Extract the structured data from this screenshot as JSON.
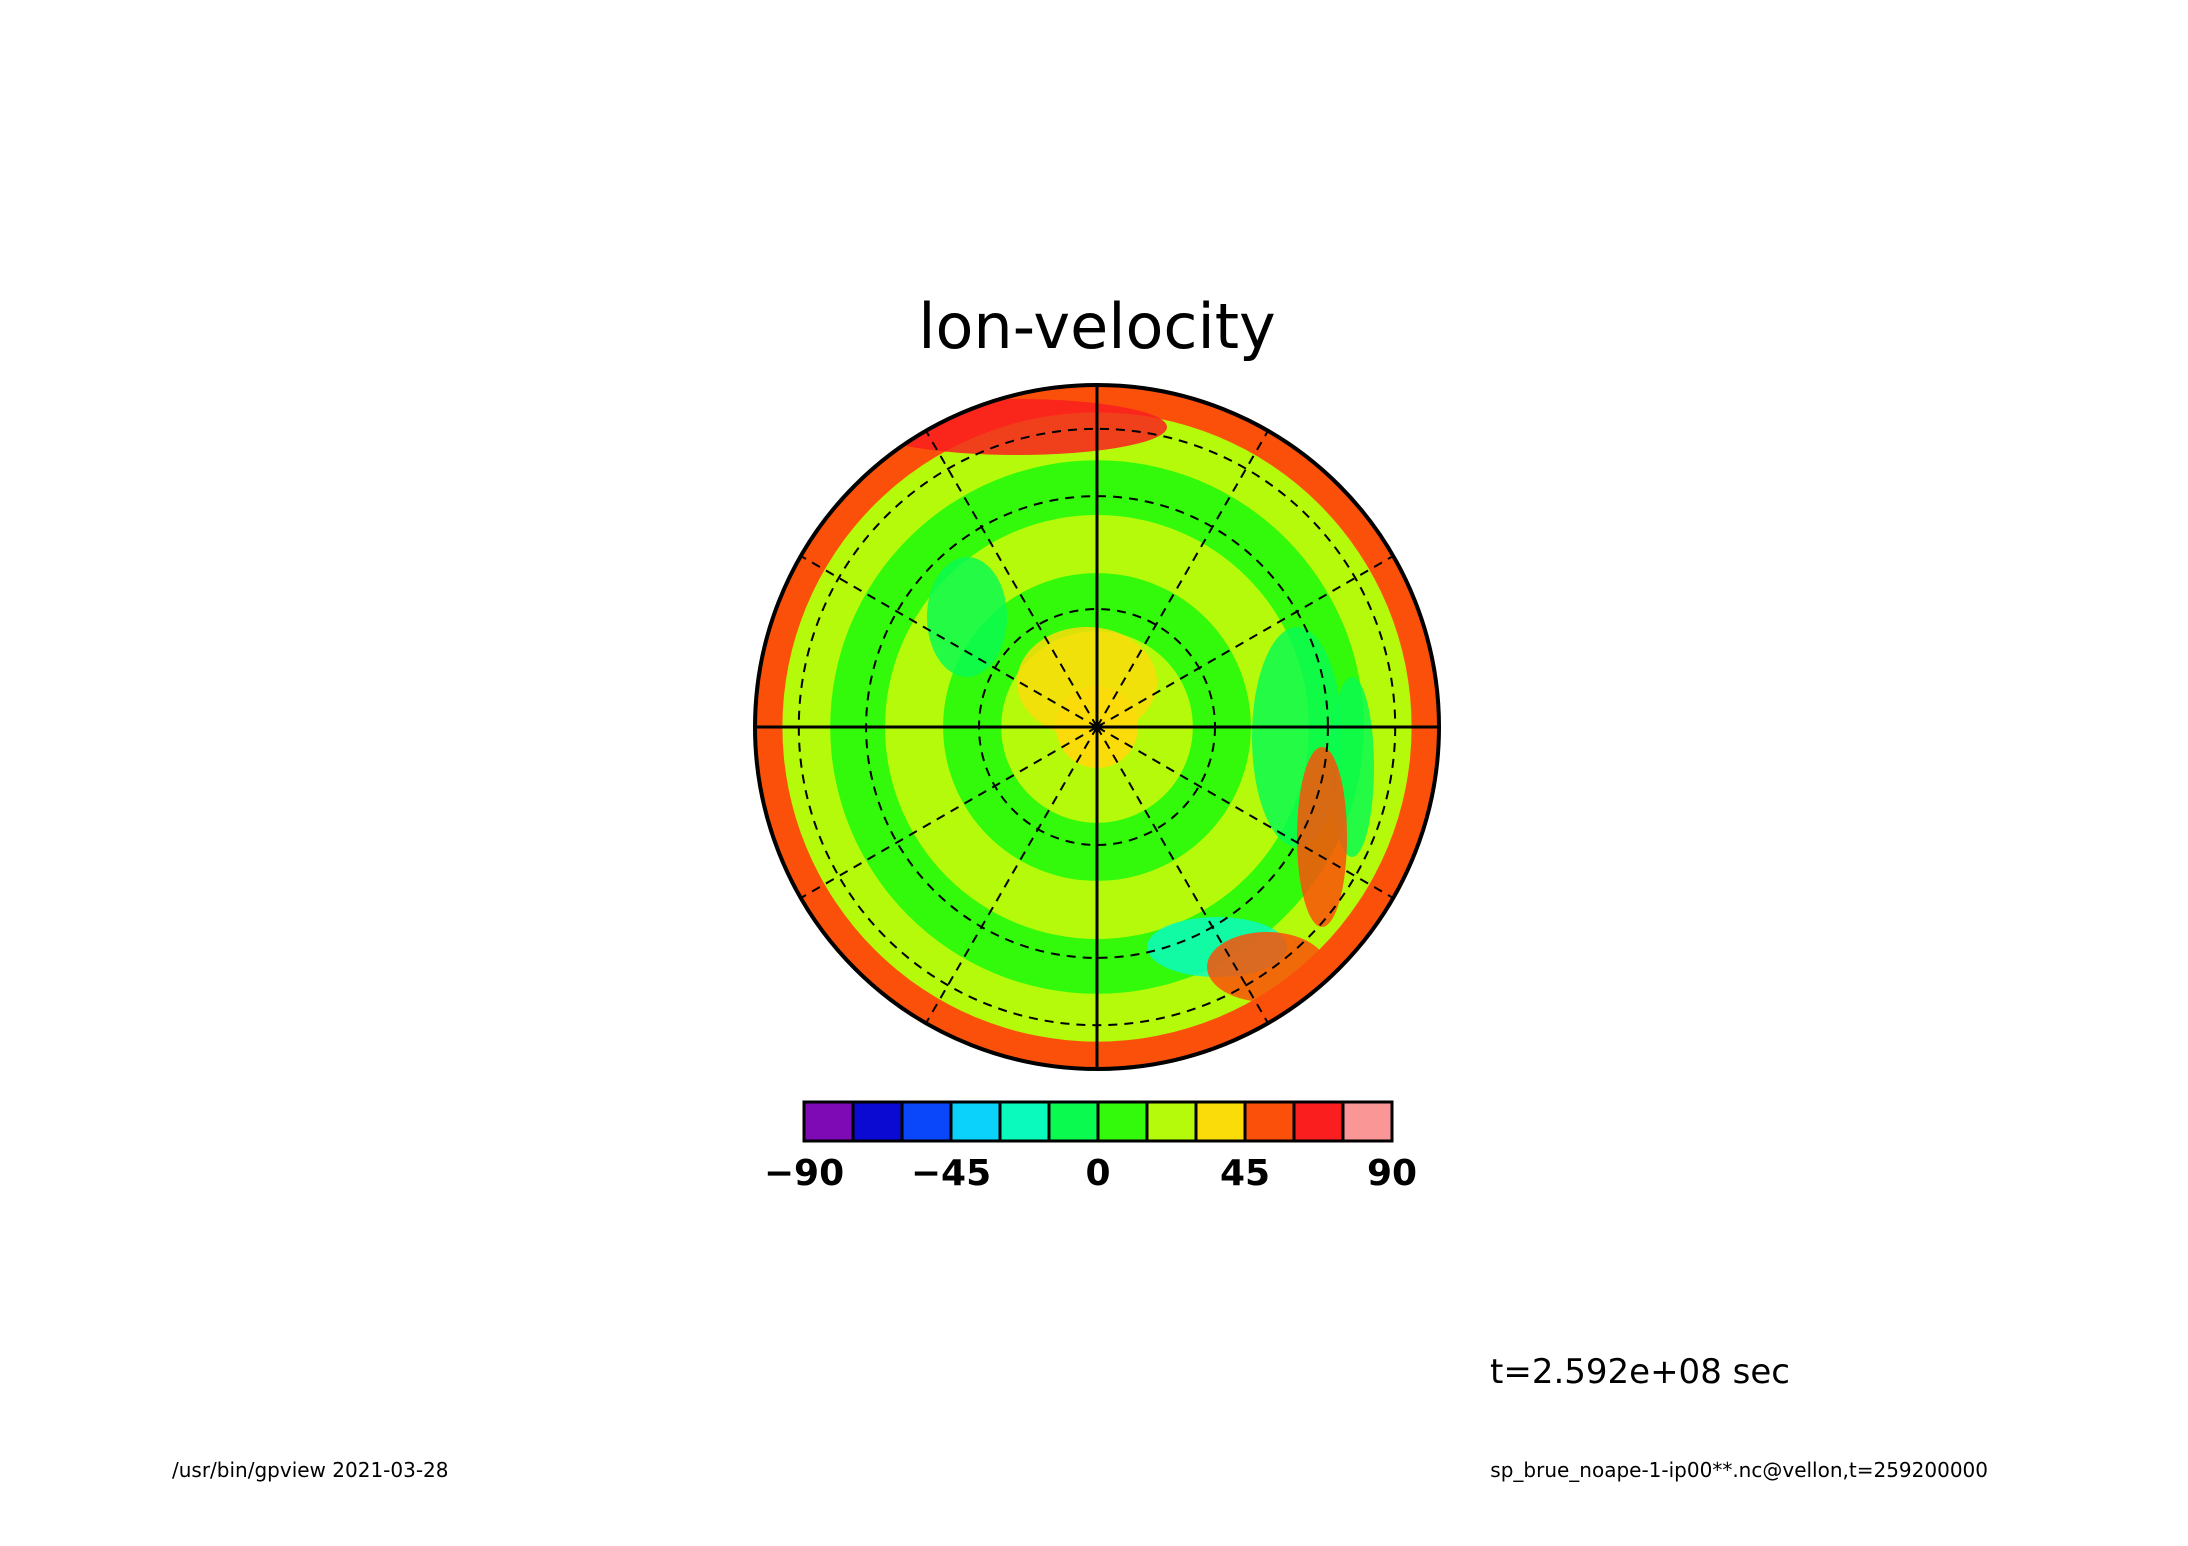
{
  "chart_data": {
    "type": "heatmap",
    "projection": "polar-stereographic",
    "title": "lon-velocity",
    "variable": "lon-velocity",
    "colorbar": {
      "levels": [
        -90,
        -75,
        -60,
        -45,
        -30,
        -15,
        0,
        15,
        30,
        45,
        60,
        75,
        90
      ],
      "colors": [
        "#7d0ab4",
        "#0a0ad2",
        "#0a46fa",
        "#0ad2fa",
        "#0afabe",
        "#0afa50",
        "#32fa0a",
        "#b4fa0a",
        "#fadc0a",
        "#fa500a",
        "#fa1e1e",
        "#fa9696"
      ],
      "tick_labels": [
        "−90",
        "−45",
        "0",
        "45",
        "90"
      ],
      "tick_values": [
        -90,
        -45,
        0,
        45,
        90
      ]
    },
    "field_description_bands": [
      {
        "from_r": 0.0,
        "to_r": 0.12,
        "value": 30
      },
      {
        "from_r": 0.12,
        "to_r": 0.28,
        "value": 20
      },
      {
        "from_r": 0.28,
        "to_r": 0.45,
        "value": 5
      },
      {
        "from_r": 0.45,
        "to_r": 0.62,
        "value": 20
      },
      {
        "from_r": 0.62,
        "to_r": 0.78,
        "value": 5
      },
      {
        "from_r": 0.78,
        "to_r": 0.92,
        "value": 20
      },
      {
        "from_r": 0.92,
        "to_r": 1.0,
        "value": 45
      }
    ]
  },
  "annotations": {
    "time_label": "t=2.592e+08 sec",
    "footer_left": "/usr/bin/gpview  2021-03-28",
    "footer_right": "sp_brue_noape-1-ip00**.nc@vellon,t=259200000"
  }
}
